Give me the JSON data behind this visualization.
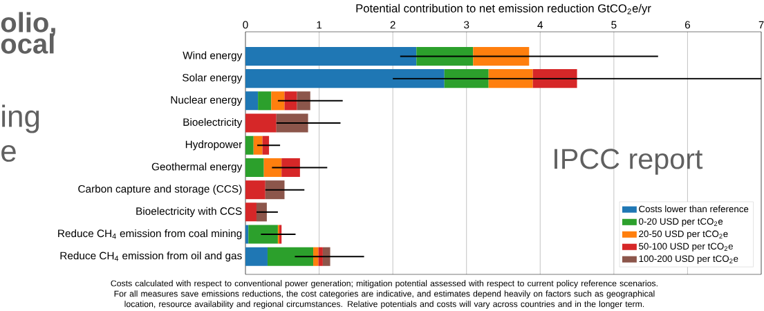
{
  "chart_data": {
    "type": "bar",
    "orientation": "horizontal",
    "stacked": true,
    "xlabel": "Potential contribution to net emission reduction GtCO$_{2}$e/yr",
    "categories": [
      "Wind energy",
      "Solar energy",
      "Nuclear energy",
      "Bioelectricity",
      "Hydropower",
      "Geothermal energy",
      "Carbon capture and storage (CCS)",
      "Bioelectricity with CCS",
      "Reduce CH$_{4}$ emission from coal mining",
      "Reduce CH$_{4}$ emission from oil and gas"
    ],
    "series": [
      {
        "name": "Costs lower than reference",
        "color": "#1f77b4",
        "values": [
          2.32,
          2.7,
          0.17,
          null,
          null,
          null,
          null,
          null,
          0.04,
          0.3
        ]
      },
      {
        "name": "0-20 USD per tCO$_{2}$e",
        "color": "#2ca02c",
        "values": [
          0.77,
          0.6,
          0.18,
          null,
          0.11,
          0.25,
          null,
          null,
          0.4,
          0.62
        ]
      },
      {
        "name": "20-50 USD per tCO$_{2}$e",
        "color": "#ff7f0e",
        "values": [
          0.76,
          0.6,
          0.18,
          null,
          0.12,
          0.24,
          null,
          null,
          0.02,
          0.07
        ],
        "errors": [
          [
            2.1,
            5.6
          ],
          null,
          null,
          null,
          null,
          null,
          null,
          null,
          null,
          null
        ]
      },
      {
        "name": "50-100 USD per tCO$_{2}$e",
        "color": "#d62728",
        "values": [
          null,
          0.6,
          0.17,
          0.42,
          0.09,
          0.25,
          0.27,
          0.15,
          0.03,
          0.06
        ],
        "errors": [
          null,
          [
            2.0,
            7.0
          ],
          null,
          null,
          [
            0.16,
            0.47
          ],
          [
            0.36,
            1.11
          ],
          null,
          null,
          [
            0.21,
            0.68
          ],
          null
        ]
      },
      {
        "name": "100-200 USD per tCO$_{2}$e",
        "color": "#8c564b",
        "values": [
          null,
          null,
          0.18,
          0.43,
          null,
          null,
          0.26,
          0.14,
          null,
          0.1
        ],
        "errors": [
          null,
          null,
          [
            0.44,
            1.32
          ],
          [
            0.42,
            1.29
          ],
          null,
          null,
          [
            0.27,
            0.8
          ],
          [
            0.15,
            0.44
          ],
          null,
          [
            0.67,
            1.61
          ]
        ]
      }
    ],
    "xlim": [
      0,
      7
    ],
    "xticks": [
      0,
      1,
      2,
      3,
      4,
      5,
      6,
      7
    ],
    "grid": "x",
    "legend": "bottom right",
    "annotations": [
      "olio,",
      "ocal",
      "ing",
      "e",
      "IPCC report",
      "Costs calculated with respect to conventional power generation; mitigation potential assessed with respect to current policy reference scenarios. For all measures save emissions reductions, the cost categories are indicative, and estimates depend heavily on factors such as geographical location, resource availability and regional circumstances. Relative potentials and costs will vary across countries and in the longer term."
    ]
  }
}
